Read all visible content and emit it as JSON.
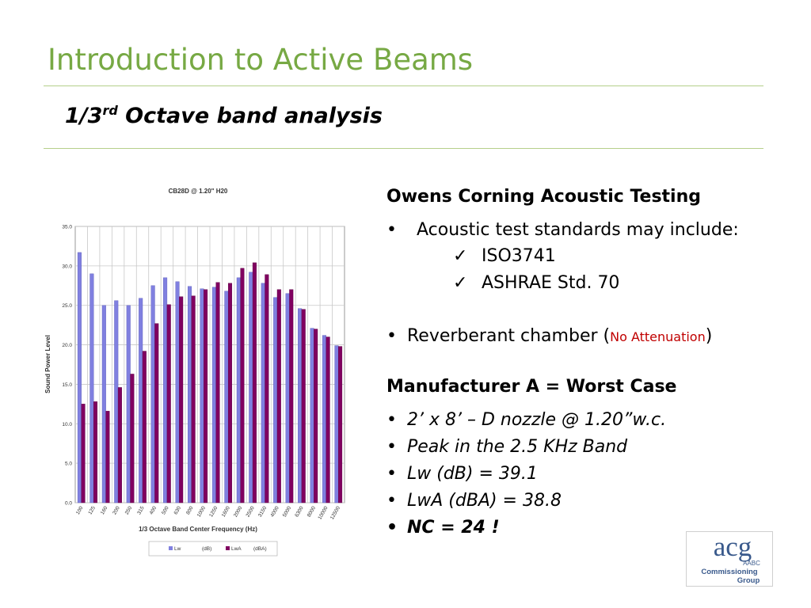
{
  "slide": {
    "title": "Introduction to Active Beams",
    "subtitle_main": "1/3",
    "subtitle_sup": "rd",
    "subtitle_rest": " Octave band analysis"
  },
  "right_panel": {
    "heading1": "Owens Corning Acoustic Testing",
    "bullet1": "Acoustic test standards may include:",
    "check_items": [
      "ISO3741",
      "ASHRAE Std. 70"
    ],
    "bullet2_prefix": "Reverberant chamber (",
    "bullet2_red": "No Attenuation",
    "bullet2_suffix": ")",
    "heading2": "Manufacturer A = Worst Case",
    "italic_bullets": [
      "2’ x 8’ – D nozzle @ 1.20”w.c.",
      "Peak in the 2.5 KHz Band",
      "Lw (dB) = 39.1",
      "LwA (dBA) = 38.8"
    ],
    "bold_bullet": "NC = 24  !",
    "bullet_glyph": "•",
    "check_glyph": "✓"
  },
  "chart_data": {
    "type": "bar",
    "title": "CB28D @ 1.20\" H20",
    "xlabel": "1/3 Octave Band Center Frequency (Hz)",
    "ylabel": "Sound Power Level",
    "ylim": [
      0,
      35
    ],
    "yticks": [
      "0.0",
      "5.0",
      "10.0",
      "15.0",
      "20.0",
      "25.0",
      "30.0",
      "35.0"
    ],
    "categories": [
      "100",
      "125",
      "160",
      "200",
      "250",
      "315",
      "400",
      "500",
      "630",
      "800",
      "1000",
      "1250",
      "1600",
      "2000",
      "2500",
      "3150",
      "4000",
      "5000",
      "6300",
      "8000",
      "10000",
      "12500"
    ],
    "series": [
      {
        "name": "Lw",
        "unit": "(dB)",
        "color": "#8080e0",
        "values": [
          31.7,
          29.0,
          25.0,
          25.6,
          25.0,
          25.9,
          27.5,
          28.5,
          28.0,
          27.4,
          27.1,
          27.3,
          26.8,
          28.5,
          29.2,
          27.8,
          26.0,
          26.5,
          24.6,
          22.1,
          21.2,
          19.9
        ]
      },
      {
        "name": "LwA",
        "unit": "(dBA)",
        "color": "#800060",
        "values": [
          12.5,
          12.8,
          11.6,
          14.6,
          16.3,
          19.2,
          22.7,
          25.1,
          26.1,
          26.2,
          27.0,
          27.9,
          27.8,
          29.7,
          30.4,
          28.9,
          27.0,
          27.0,
          24.5,
          22.0,
          21.0,
          19.8
        ]
      }
    ],
    "legend_position": "bottom"
  },
  "logo": {
    "mark": "acg",
    "line1": "AABC",
    "line2": "Commissioning",
    "line3": "Group"
  }
}
